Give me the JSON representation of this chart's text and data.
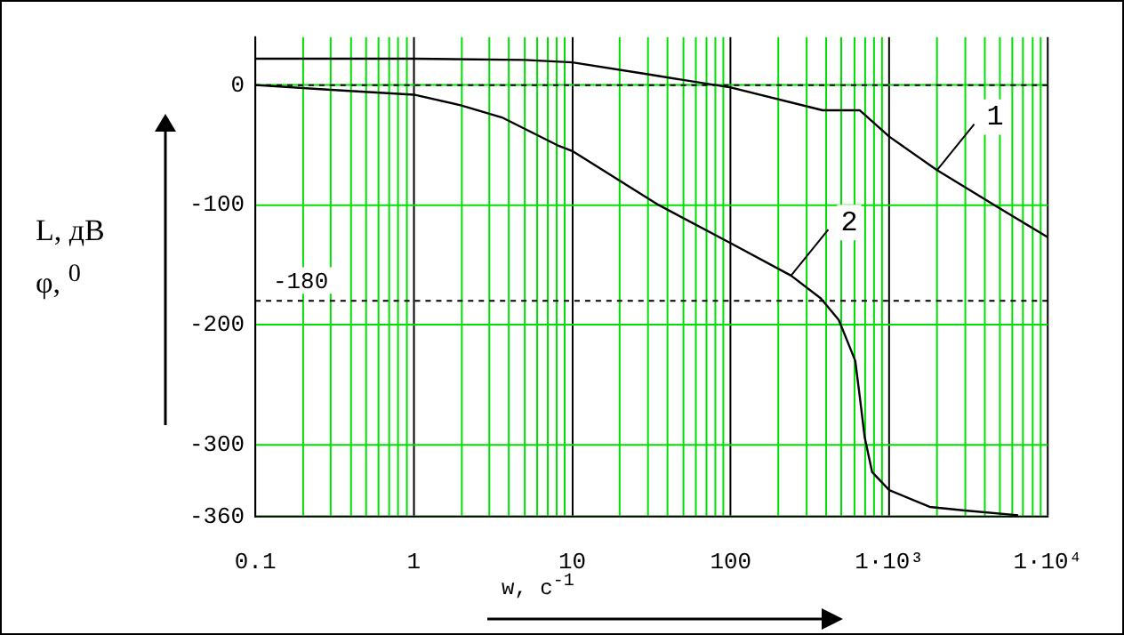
{
  "chart_data": {
    "type": "line",
    "xlabel": "w, c$^{-1}$",
    "ylabel": "L, дB\nφ, $^{0}$",
    "log": "x",
    "xlim": [
      0.1,
      10000
    ],
    "ylim": [
      -360,
      40
    ],
    "xticks": [
      {
        "value": 0.1,
        "label": "0.1"
      },
      {
        "value": 0.2,
        "label": null
      },
      {
        "value": 0.3,
        "label": null
      },
      {
        "value": 0.4,
        "label": null
      },
      {
        "value": 0.5,
        "label": null
      },
      {
        "value": 0.6,
        "label": null
      },
      {
        "value": 0.7,
        "label": null
      },
      {
        "value": 0.8,
        "label": null
      },
      {
        "value": 0.9,
        "label": null
      },
      1,
      {
        "value": 2,
        "label": null
      },
      {
        "value": 3,
        "label": null
      },
      {
        "value": 4,
        "label": null
      },
      {
        "value": 5,
        "label": null
      },
      {
        "value": 6,
        "label": null
      },
      {
        "value": 7,
        "label": null
      },
      {
        "value": 8,
        "label": null
      },
      {
        "value": 9,
        "label": null
      },
      10,
      {
        "value": 20,
        "label": null
      },
      {
        "value": 30,
        "label": null
      },
      {
        "value": 40,
        "label": null
      },
      {
        "value": 50,
        "label": null
      },
      {
        "value": 60,
        "label": null
      },
      {
        "value": 70,
        "label": null
      },
      {
        "value": 80,
        "label": null
      },
      {
        "value": 90,
        "label": null
      },
      100,
      {
        "value": 200,
        "label": null
      },
      {
        "value": 300,
        "label": null
      },
      {
        "value": 400,
        "label": null
      },
      {
        "value": 500,
        "label": null
      },
      {
        "value": 600,
        "label": null
      },
      {
        "value": 700,
        "label": null
      },
      {
        "value": 800,
        "label": null
      },
      {
        "value": 900,
        "label": null
      },
      {
        "value": 1000,
        "label": "1·10³"
      },
      {
        "value": 2000,
        "label": null
      },
      {
        "value": 3000,
        "label": null
      },
      {
        "value": 4000,
        "label": null
      },
      {
        "value": 5000,
        "label": null
      },
      {
        "value": 6000,
        "label": null
      },
      {
        "value": 7000,
        "label": null
      },
      {
        "value": 8000,
        "label": null
      },
      {
        "value": 9000,
        "label": null
      },
      {
        "value": 10000,
        "label": "1·10⁴"
      }
    ],
    "yticks": [
      0,
      -100,
      -200,
      -300,
      -360
    ],
    "grid": true,
    "legend": false,
    "marker": "none",
    "line_style": "solid",
    "series": [
      {
        "color": "#000000",
        "x": [
          0.1,
          1,
          5,
          10,
          30,
          100,
          380,
          650,
          1000,
          2000,
          5000,
          10000
        ],
        "values": [
          22,
          22,
          21,
          19,
          9,
          -2,
          -21,
          -21,
          -43,
          -71,
          -103,
          -127
        ]
      },
      {
        "color": "#000000",
        "x": [
          0.1,
          0.3,
          1,
          2,
          3.6,
          8,
          10,
          35,
          100,
          240,
          370,
          480,
          530,
          610,
          650,
          700,
          780,
          1000,
          1800,
          3000,
          6500
        ],
        "values": [
          0,
          -4,
          -8,
          -17,
          -27,
          -50,
          -55,
          -100,
          -132,
          -159,
          -178,
          -196,
          -210,
          -230,
          -259,
          -294,
          -323,
          -338,
          -352,
          -355,
          -359
        ]
      }
    ],
    "ref_lines": [
      {
        "axis": "y",
        "value": 0,
        "label": null,
        "color": "#000000",
        "line_style": "dashed"
      },
      {
        "axis": "y",
        "value": -180,
        "label": "-180",
        "color": "#000000",
        "line_style": "dashed"
      }
    ],
    "annotations": [
      {
        "text": "1",
        "x": 2000,
        "y": -71
      },
      {
        "text": "2",
        "x": 240,
        "y": -159
      }
    ]
  }
}
